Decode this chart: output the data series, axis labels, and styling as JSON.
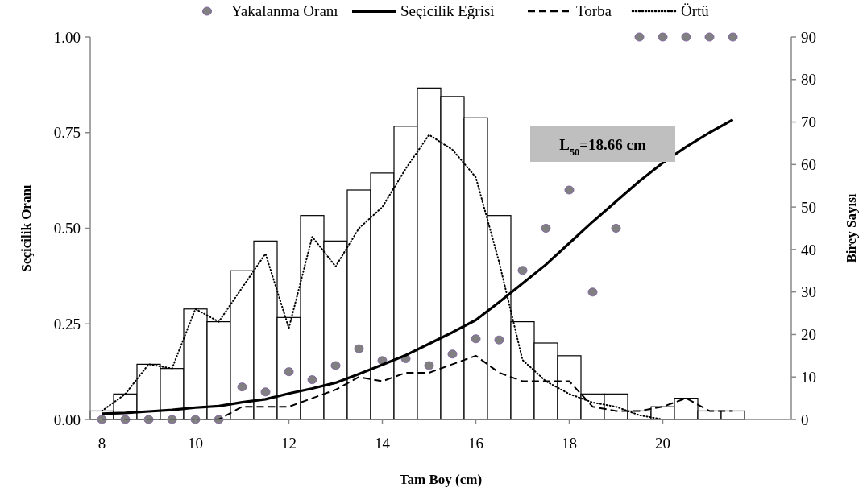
{
  "chart_data": {
    "type": "bar",
    "xlabel": "Tam Boy (cm)",
    "ylabel": "Seçicilik Oranı",
    "y2label": "Birey Sayısı",
    "x": [
      8,
      8.5,
      9,
      9.5,
      10,
      10.5,
      11,
      11.5,
      12,
      12.5,
      13,
      13.5,
      14,
      14.5,
      15,
      15.5,
      16,
      16.5,
      17,
      17.5,
      18,
      18.5,
      19,
      19.5,
      20,
      20.5,
      21,
      21.5
    ],
    "xlim": [
      7.75,
      22.75
    ],
    "xticks": [
      8,
      10,
      12,
      14,
      16,
      18,
      20
    ],
    "ylim": [
      0,
      1
    ],
    "yticks": [
      {
        "value": 0,
        "label": "0.00"
      },
      {
        "value": 0.25,
        "label": "0.25"
      },
      {
        "value": 0.5,
        "label": "0.50"
      },
      {
        "value": 0.75,
        "label": "0.75"
      },
      {
        "value": 1,
        "label": "1.00"
      }
    ],
    "y2lim": [
      0,
      90
    ],
    "y2ticks": [
      0,
      10,
      20,
      30,
      40,
      50,
      60,
      70,
      80,
      90
    ],
    "grid": false,
    "legend": "top",
    "annotations": [
      "L$_{50}$=18.66 cm"
    ],
    "series": [
      {
        "axis": "y2",
        "color": "#ffffff",
        "values": [
          2,
          6,
          13,
          12,
          26,
          23,
          35,
          42,
          24,
          48,
          42,
          54,
          58,
          69,
          78,
          76,
          71,
          48,
          23,
          18,
          15,
          6,
          6,
          2,
          3,
          5,
          2,
          2
        ]
      },
      {
        "type": "scatter",
        "name": "Yakalanma Oranı",
        "color": "#808080",
        "marker": "circle",
        "values": [
          0,
          0,
          0,
          0,
          0,
          0,
          0.085,
          0.072,
          0.125,
          0.104,
          0.141,
          0.185,
          0.154,
          0.159,
          0.141,
          0.171,
          0.211,
          0.208,
          0.39,
          0.5,
          0.6,
          0.333,
          0.5,
          1,
          1,
          1,
          1,
          1
        ]
      },
      {
        "type": "line",
        "name": "Seçicilik Eğrisi",
        "color": "#000000",
        "line_style": "solid",
        "values": [
          0.015,
          0.017,
          0.021,
          0.025,
          0.031,
          0.035,
          0.045,
          0.053,
          0.068,
          0.081,
          0.096,
          0.119,
          0.143,
          0.168,
          0.198,
          0.228,
          0.26,
          0.307,
          0.356,
          0.405,
          0.461,
          0.517,
          0.57,
          0.623,
          0.671,
          0.713,
          0.75,
          0.784
        ]
      },
      {
        "type": "line",
        "name": "Torba",
        "axis": "y2",
        "color": "#000000",
        "line_style": "dashed",
        "values": [
          0,
          0,
          0,
          0,
          0,
          0,
          3,
          3,
          3,
          5,
          7,
          10,
          9,
          11,
          11,
          13,
          15,
          11,
          9,
          9,
          9,
          3,
          2,
          2,
          3,
          5,
          2,
          2
        ]
      },
      {
        "type": "line",
        "name": "Örtü",
        "axis": "y2",
        "color": "#000000",
        "line_style": "dotted",
        "values": [
          2,
          6,
          13,
          12,
          26,
          23,
          31,
          39,
          21.5,
          43,
          36,
          45,
          50,
          59,
          67,
          63.5,
          57,
          37,
          14,
          9,
          6,
          4,
          3,
          1,
          0,
          null,
          null,
          null
        ]
      }
    ]
  }
}
